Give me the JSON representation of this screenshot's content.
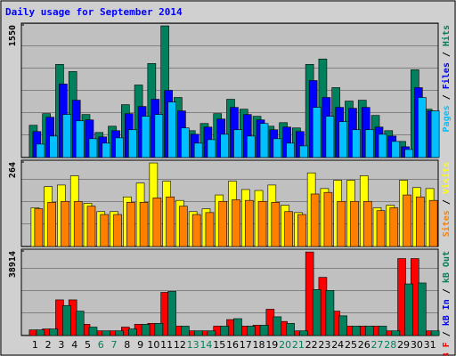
{
  "chart_data": [
    {
      "type": "bar",
      "title": "Daily usage for September 2014",
      "ylim": [
        0,
        1550
      ],
      "yticks": [
        1550
      ],
      "legend_separator": " / ",
      "legend_reverse": true,
      "series": [
        {
          "name": "Hits",
          "color": "#00805c",
          "values": [
            377,
            513,
            1089,
            1005,
            503,
            293,
            366,
            618,
            848,
            1099,
            1539,
            702,
            314,
            398,
            513,
            681,
            565,
            482,
            366,
            408,
            346,
            1089,
            1152,
            817,
            660,
            670,
            492,
            314,
            188,
            1026,
            565
          ]
        },
        {
          "name": "Files",
          "color": "#0000ff",
          "values": [
            304,
            471,
            859,
            670,
            440,
            241,
            314,
            513,
            597,
            681,
            785,
            545,
            272,
            356,
            450,
            586,
            503,
            440,
            325,
            356,
            304,
            900,
            702,
            586,
            576,
            586,
            356,
            251,
            126,
            817,
            545
          ]
        },
        {
          "name": "Pages",
          "color": "#00c0ff",
          "values": [
            157,
            251,
            503,
            429,
            220,
            168,
            230,
            325,
            482,
            503,
            649,
            346,
            168,
            209,
            272,
            325,
            251,
            398,
            220,
            168,
            136,
            586,
            482,
            419,
            325,
            325,
            272,
            188,
            94,
            702,
            545
          ]
        }
      ]
    },
    {
      "type": "bar",
      "ylim": [
        0,
        264
      ],
      "yticks": [
        264
      ],
      "legend_separator": " / ",
      "legend_reverse": true,
      "series": [
        {
          "name": "Visits",
          "color": "#ffff00",
          "values": [
            121,
            187,
            192,
            221,
            135,
            109,
            109,
            155,
            198,
            261,
            204,
            144,
            109,
            118,
            161,
            204,
            178,
            175,
            192,
            129,
            106,
            230,
            181,
            207,
            207,
            221,
            121,
            129,
            207,
            184,
            181
          ]
        },
        {
          "name": "Sites",
          "color": "#ff8000",
          "values": [
            118,
            138,
            141,
            141,
            126,
            100,
            100,
            138,
            138,
            152,
            155,
            126,
            100,
            106,
            141,
            146,
            144,
            141,
            138,
            109,
            100,
            164,
            169,
            141,
            141,
            141,
            112,
            121,
            161,
            155,
            144
          ]
        }
      ]
    },
    {
      "type": "bar",
      "ylim": [
        0,
        38914
      ],
      "yticks": [
        38914
      ],
      "legend_separator": " / ",
      "legend_reverse": false,
      "categories": [
        "1",
        "2",
        "3",
        "4",
        "5",
        "6",
        "7",
        "8",
        "9",
        "10",
        "11",
        "12",
        "13",
        "14",
        "15",
        "16",
        "17",
        "18",
        "19",
        "20",
        "21",
        "22",
        "23",
        "24",
        "25",
        "26",
        "27",
        "28",
        "29",
        "30",
        "31"
      ],
      "category_colors": [
        "#000000",
        "#000000",
        "#000000",
        "#000000",
        "#000000",
        "#00805c",
        "#00805c",
        "#000000",
        "#000000",
        "#000000",
        "#000000",
        "#000000",
        "#00805c",
        "#00805c",
        "#000000",
        "#000000",
        "#000000",
        "#000000",
        "#000000",
        "#00805c",
        "#00805c",
        "#000000",
        "#000000",
        "#000000",
        "#000000",
        "#000000",
        "#00805c",
        "#00805c",
        "#000000",
        "#000000",
        "#000000"
      ],
      "series": [
        {
          "name": "kB F",
          "color": "#ff0000",
          "values": [
            2592,
            3024,
            16416,
            16416,
            5184,
            2160,
            2160,
            3888,
            5184,
            5616,
            19872,
            4320,
            2160,
            2160,
            4320,
            7344,
            4320,
            4752,
            12096,
            6480,
            2160,
            38448,
            26784,
            11232,
            4320,
            4320,
            4320,
            2160,
            35424,
            35424,
            2160
          ]
        },
        {
          "name": "kB In",
          "color": "#0000ff",
          "values": [
            0,
            0,
            0,
            0,
            0,
            0,
            0,
            0,
            0,
            0,
            0,
            0,
            0,
            0,
            0,
            0,
            0,
            0,
            0,
            0,
            0,
            0,
            0,
            0,
            0,
            0,
            0,
            0,
            0,
            0,
            0
          ]
        },
        {
          "name": "kB Out",
          "color": "#00805c",
          "values": [
            2592,
            3024,
            13824,
            11232,
            3888,
            2160,
            2160,
            3024,
            5184,
            5616,
            20304,
            4320,
            2160,
            2160,
            4320,
            7776,
            4320,
            4752,
            8640,
            5616,
            2160,
            21168,
            20736,
            9072,
            4320,
            4320,
            4320,
            2160,
            23760,
            24192,
            2160
          ]
        }
      ]
    }
  ]
}
